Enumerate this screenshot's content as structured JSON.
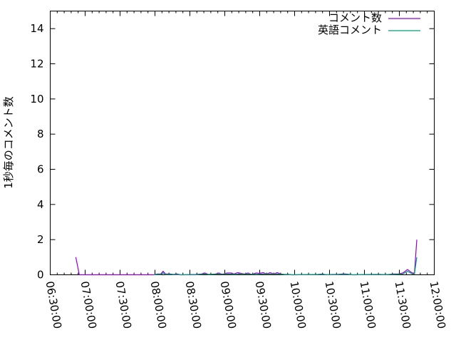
{
  "chart_data": {
    "type": "line",
    "title": "",
    "xlabel": "",
    "ylabel": "1秒毎のコメント数",
    "xlim": [
      "06:30:00",
      "12:00:00"
    ],
    "ylim": [
      0,
      15
    ],
    "x_ticks": [
      "06:30:00",
      "07:00:00",
      "07:30:00",
      "08:00:00",
      "08:30:00",
      "09:00:00",
      "09:30:00",
      "10:00:00",
      "10:30:00",
      "11:00:00",
      "11:30:00",
      "12:00:00"
    ],
    "y_ticks": [
      0,
      2,
      4,
      6,
      8,
      10,
      12,
      14
    ],
    "grid": false,
    "legend": "top-right",
    "series": [
      {
        "name": "コメント数",
        "color": "#9400d3",
        "points": [
          [
            "06:52:00",
            1
          ],
          [
            "06:55:00",
            0
          ],
          [
            "07:59:00",
            0
          ],
          [
            "08:02:00",
            0.05
          ],
          [
            "08:05:00",
            0.05
          ],
          [
            "08:07:00",
            0.2
          ],
          [
            "08:09:00",
            0.05
          ],
          [
            "08:13:00",
            0.05
          ],
          [
            "08:16:00",
            0.02
          ],
          [
            "08:19:00",
            0.05
          ],
          [
            "08:22:00",
            0
          ],
          [
            "08:35:00",
            0.02
          ],
          [
            "08:40:00",
            0.05
          ],
          [
            "08:43:00",
            0.1
          ],
          [
            "08:46:00",
            0.02
          ],
          [
            "08:52:00",
            0.05
          ],
          [
            "08:55:00",
            0.1
          ],
          [
            "08:58:00",
            0.02
          ],
          [
            "09:02:00",
            0.1
          ],
          [
            "09:05:00",
            0.1
          ],
          [
            "09:08:00",
            0.05
          ],
          [
            "09:11:00",
            0.12
          ],
          [
            "09:14:00",
            0.08
          ],
          [
            "09:17:00",
            0.05
          ],
          [
            "09:20:00",
            0.1
          ],
          [
            "09:23:00",
            0.02
          ],
          [
            "09:27:00",
            0.1
          ],
          [
            "09:30:00",
            0.08
          ],
          [
            "09:33:00",
            0.12
          ],
          [
            "09:36:00",
            0.05
          ],
          [
            "09:39:00",
            0.12
          ],
          [
            "09:42:00",
            0.05
          ],
          [
            "09:45:00",
            0.12
          ],
          [
            "09:48:00",
            0.05
          ],
          [
            "09:51:00",
            0.02
          ],
          [
            "09:55:00",
            0.02
          ],
          [
            "09:58:00",
            0
          ],
          [
            "10:20:00",
            0.02
          ],
          [
            "10:24:00",
            0.05
          ],
          [
            "10:27:00",
            0
          ],
          [
            "10:33:00",
            0.02
          ],
          [
            "10:37:00",
            0.02
          ],
          [
            "10:41:00",
            0.05
          ],
          [
            "10:44:00",
            0.05
          ],
          [
            "10:47:00",
            0.02
          ],
          [
            "10:50:00",
            0
          ],
          [
            "11:08:00",
            0.02
          ],
          [
            "11:14:00",
            0.02
          ],
          [
            "11:18:00",
            0
          ],
          [
            "11:25:00",
            0.05
          ],
          [
            "11:29:00",
            0.05
          ],
          [
            "11:33:00",
            0.1
          ],
          [
            "11:37:00",
            0.3
          ],
          [
            "11:41:00",
            0.1
          ],
          [
            "11:43:00",
            0.1
          ],
          [
            "11:45:00",
            2
          ]
        ]
      },
      {
        "name": "英語コメント",
        "color": "#009e73",
        "points": [
          [
            "07:59:00",
            0
          ],
          [
            "08:02:00",
            0.02
          ],
          [
            "08:05:00",
            0.02
          ],
          [
            "08:07:00",
            0.1
          ],
          [
            "08:09:00",
            0.02
          ],
          [
            "08:13:00",
            0.02
          ],
          [
            "08:22:00",
            0
          ],
          [
            "08:35:00",
            0
          ],
          [
            "08:43:00",
            0.05
          ],
          [
            "08:46:00",
            0.02
          ],
          [
            "08:55:00",
            0.05
          ],
          [
            "09:02:00",
            0.05
          ],
          [
            "09:08:00",
            0.03
          ],
          [
            "09:14:00",
            0.05
          ],
          [
            "09:20:00",
            0.05
          ],
          [
            "09:27:00",
            0.03
          ],
          [
            "09:33:00",
            0.05
          ],
          [
            "09:39:00",
            0.05
          ],
          [
            "09:45:00",
            0.05
          ],
          [
            "09:51:00",
            0.02
          ],
          [
            "09:58:00",
            0
          ],
          [
            "10:24:00",
            0.02
          ],
          [
            "10:30:00",
            0
          ],
          [
            "10:44:00",
            0.02
          ],
          [
            "10:50:00",
            0
          ],
          [
            "11:25:00",
            0.02
          ],
          [
            "11:33:00",
            0.05
          ],
          [
            "11:37:00",
            0.2
          ],
          [
            "11:41:00",
            0.05
          ],
          [
            "11:43:00",
            0.05
          ],
          [
            "11:45:00",
            1
          ]
        ]
      }
    ]
  }
}
